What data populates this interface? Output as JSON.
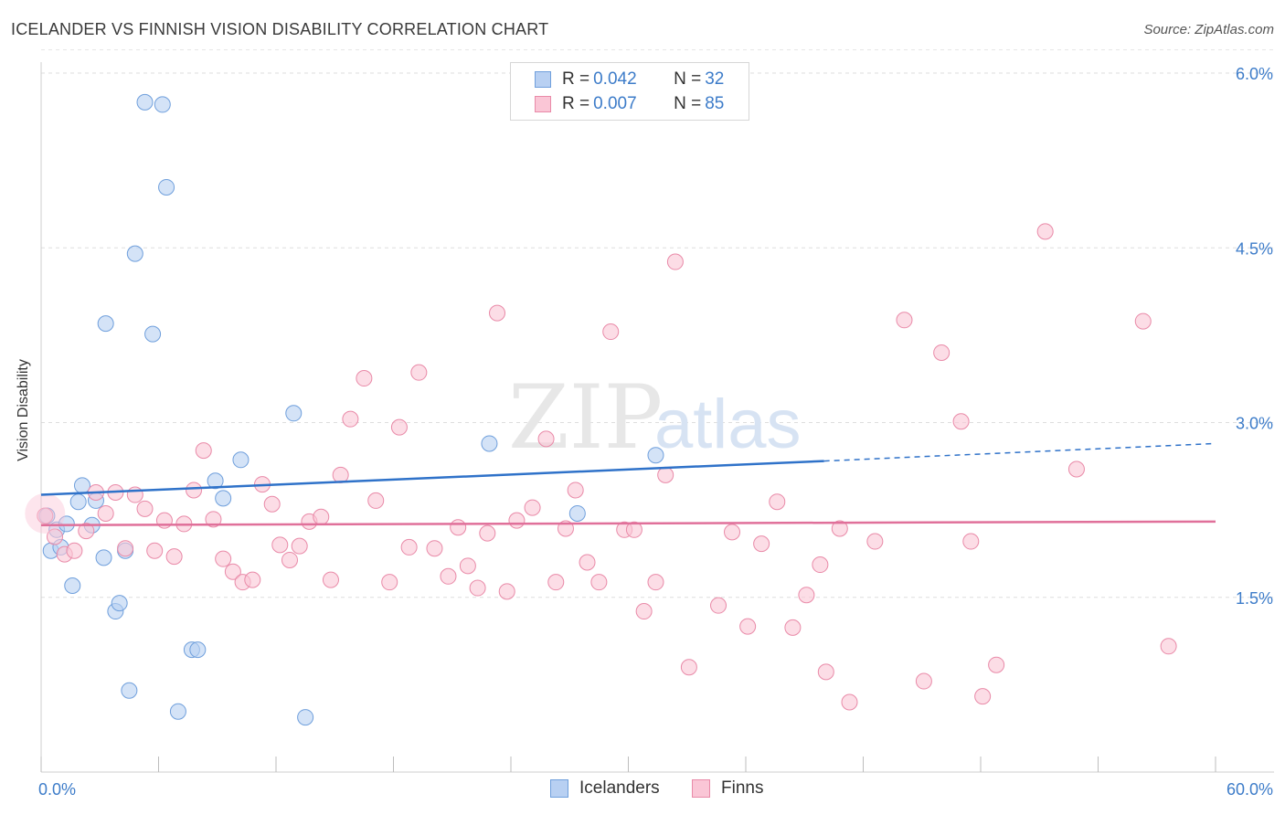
{
  "title": "ICELANDER VS FINNISH VISION DISABILITY CORRELATION CHART",
  "source": "Source: ZipAtlas.com",
  "legend": {
    "r_label": "R = ",
    "n_label": "N = ",
    "rows": [
      {
        "name": "Icelanders",
        "r": "0.042",
        "n": "32",
        "fill": "#b8d0f2",
        "stroke": "#6f9fdc"
      },
      {
        "name": "Finns",
        "r": "0.007",
        "n": "85",
        "fill": "#fac6d6",
        "stroke": "#e98aa8"
      }
    ]
  },
  "watermark": {
    "part1": "ZIP",
    "part2": "atlas"
  },
  "chart_data": {
    "type": "scatter",
    "title": "ICELANDER VS FINNISH VISION DISABILITY CORRELATION CHART",
    "xlabel": "",
    "ylabel": "Vision Disability",
    "xlim": [
      0,
      60
    ],
    "ylim": [
      0,
      6.2
    ],
    "x_tick_labels": [
      "0.0%",
      "60.0%"
    ],
    "y_ticks": [
      1.5,
      3.0,
      4.5,
      6.0
    ],
    "y_tick_labels": [
      "1.5%",
      "3.0%",
      "4.5%",
      "6.0%"
    ],
    "grid": true,
    "series": [
      {
        "name": "Icelanders",
        "color": "#6f9fdc",
        "fill": "#b8d0f2",
        "trend": {
          "x0": 0,
          "y0": 2.38,
          "x1": 40,
          "y1": 2.67,
          "dash_x1": 60,
          "dash_y1": 2.82,
          "color": "#2f72c9"
        },
        "points": [
          [
            0.3,
            2.2
          ],
          [
            0.5,
            1.9
          ],
          [
            0.8,
            2.08
          ],
          [
            1.0,
            1.93
          ],
          [
            1.3,
            2.13
          ],
          [
            1.6,
            1.6
          ],
          [
            1.9,
            2.32
          ],
          [
            2.1,
            2.46
          ],
          [
            2.6,
            2.12
          ],
          [
            2.8,
            2.33
          ],
          [
            3.2,
            1.84
          ],
          [
            3.3,
            3.85
          ],
          [
            3.8,
            1.38
          ],
          [
            4.0,
            1.45
          ],
          [
            4.3,
            1.9
          ],
          [
            4.5,
            0.7
          ],
          [
            4.8,
            4.45
          ],
          [
            5.3,
            5.75
          ],
          [
            5.7,
            3.76
          ],
          [
            6.2,
            5.73
          ],
          [
            6.4,
            5.02
          ],
          [
            7.0,
            0.52
          ],
          [
            7.7,
            1.05
          ],
          [
            8.0,
            1.05
          ],
          [
            8.9,
            2.5
          ],
          [
            9.3,
            2.35
          ],
          [
            10.2,
            2.68
          ],
          [
            12.9,
            3.08
          ],
          [
            13.5,
            0.47
          ],
          [
            22.9,
            2.82
          ],
          [
            27.4,
            2.22
          ],
          [
            31.4,
            2.72
          ]
        ]
      },
      {
        "name": "Finns",
        "color": "#e98aa8",
        "fill": "#fac6d6",
        "trend": {
          "x0": 0,
          "y0": 2.12,
          "x1": 60,
          "y1": 2.15,
          "color": "#e0709a"
        },
        "points": [
          [
            0.2,
            2.2
          ],
          [
            0.7,
            2.02
          ],
          [
            1.2,
            1.87
          ],
          [
            1.7,
            1.9
          ],
          [
            2.3,
            2.07
          ],
          [
            2.8,
            2.4
          ],
          [
            3.3,
            2.22
          ],
          [
            3.8,
            2.4
          ],
          [
            4.3,
            1.92
          ],
          [
            4.8,
            2.38
          ],
          [
            5.3,
            2.26
          ],
          [
            5.8,
            1.9
          ],
          [
            6.3,
            2.16
          ],
          [
            6.8,
            1.85
          ],
          [
            7.3,
            2.13
          ],
          [
            7.8,
            2.42
          ],
          [
            8.3,
            2.76
          ],
          [
            8.8,
            2.17
          ],
          [
            9.3,
            1.83
          ],
          [
            9.8,
            1.72
          ],
          [
            10.3,
            1.63
          ],
          [
            10.8,
            1.65
          ],
          [
            11.3,
            2.47
          ],
          [
            11.8,
            2.3
          ],
          [
            12.2,
            1.95
          ],
          [
            12.7,
            1.82
          ],
          [
            13.2,
            1.94
          ],
          [
            13.7,
            2.15
          ],
          [
            14.3,
            2.19
          ],
          [
            14.8,
            1.65
          ],
          [
            15.3,
            2.55
          ],
          [
            15.8,
            3.03
          ],
          [
            16.5,
            3.38
          ],
          [
            17.1,
            2.33
          ],
          [
            17.8,
            1.63
          ],
          [
            18.3,
            2.96
          ],
          [
            18.8,
            1.93
          ],
          [
            19.3,
            3.43
          ],
          [
            20.1,
            1.92
          ],
          [
            20.8,
            1.68
          ],
          [
            21.3,
            2.1
          ],
          [
            21.8,
            1.77
          ],
          [
            22.3,
            1.58
          ],
          [
            22.8,
            2.05
          ],
          [
            23.3,
            3.94
          ],
          [
            23.8,
            1.55
          ],
          [
            24.3,
            2.16
          ],
          [
            25.1,
            2.27
          ],
          [
            25.8,
            2.86
          ],
          [
            26.3,
            1.63
          ],
          [
            26.8,
            2.09
          ],
          [
            27.3,
            2.42
          ],
          [
            27.9,
            1.8
          ],
          [
            28.5,
            1.63
          ],
          [
            29.1,
            3.78
          ],
          [
            29.8,
            2.08
          ],
          [
            30.3,
            2.08
          ],
          [
            30.8,
            1.38
          ],
          [
            31.4,
            1.63
          ],
          [
            31.9,
            2.55
          ],
          [
            32.4,
            4.38
          ],
          [
            33.1,
            0.9
          ],
          [
            34.6,
            1.43
          ],
          [
            35.3,
            2.06
          ],
          [
            36.1,
            1.25
          ],
          [
            36.8,
            1.96
          ],
          [
            37.6,
            2.32
          ],
          [
            38.4,
            1.24
          ],
          [
            39.1,
            1.52
          ],
          [
            39.8,
            1.78
          ],
          [
            40.1,
            0.86
          ],
          [
            40.8,
            2.09
          ],
          [
            41.3,
            0.6
          ],
          [
            42.6,
            1.98
          ],
          [
            44.1,
            3.88
          ],
          [
            45.1,
            0.78
          ],
          [
            46.0,
            3.6
          ],
          [
            47.0,
            3.01
          ],
          [
            47.5,
            1.98
          ],
          [
            48.1,
            0.65
          ],
          [
            48.8,
            0.92
          ],
          [
            51.3,
            4.64
          ],
          [
            52.9,
            2.6
          ],
          [
            56.3,
            3.87
          ],
          [
            57.6,
            1.08
          ]
        ]
      }
    ]
  }
}
